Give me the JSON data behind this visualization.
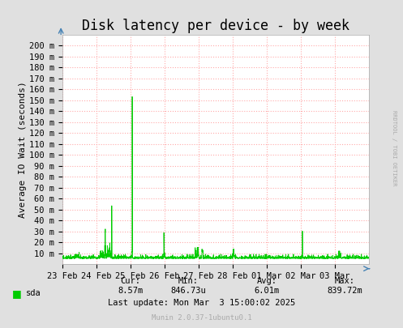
{
  "title": "Disk latency per device - by week",
  "ylabel": "Average IO Wait (seconds)",
  "bg_color": "#e0e0e0",
  "plot_bg_color": "#ffffff",
  "grid_color": "#ffaaaa",
  "line_color": "#00cc00",
  "ytick_labels": [
    "10 m",
    "20 m",
    "30 m",
    "40 m",
    "50 m",
    "60 m",
    "70 m",
    "80 m",
    "90 m",
    "100 m",
    "110 m",
    "120 m",
    "130 m",
    "140 m",
    "150 m",
    "160 m",
    "170 m",
    "180 m",
    "190 m",
    "200 m"
  ],
  "ytick_values": [
    0.01,
    0.02,
    0.03,
    0.04,
    0.05,
    0.06,
    0.07,
    0.08,
    0.09,
    0.1,
    0.11,
    0.12,
    0.13,
    0.14,
    0.15,
    0.16,
    0.17,
    0.18,
    0.19,
    0.2
  ],
  "ylim": [
    0.0,
    0.21
  ],
  "xtick_labels": [
    "23 Feb",
    "24 Feb",
    "25 Feb",
    "26 Feb",
    "27 Feb",
    "28 Feb",
    "01 Mar",
    "02 Mar",
    "03 Mar"
  ],
  "legend_label": "sda",
  "legend_color": "#00cc00",
  "cur_label": "Cur:",
  "cur_value": "8.57m",
  "min_label": "Min:",
  "min_value": "846.73u",
  "avg_label": "Avg:",
  "avg_value": "6.01m",
  "max_label": "Max:",
  "max_value": "839.72m",
  "last_update": "Last update: Mon Mar  3 15:00:02 2025",
  "munin_label": "Munin 2.0.37-1ubuntu0.1",
  "rrdtool_label": "RRDTOOL / TOBI OETIKER",
  "title_fontsize": 12,
  "axis_fontsize": 8,
  "tick_fontsize": 7.5,
  "small_fontsize": 6.5
}
